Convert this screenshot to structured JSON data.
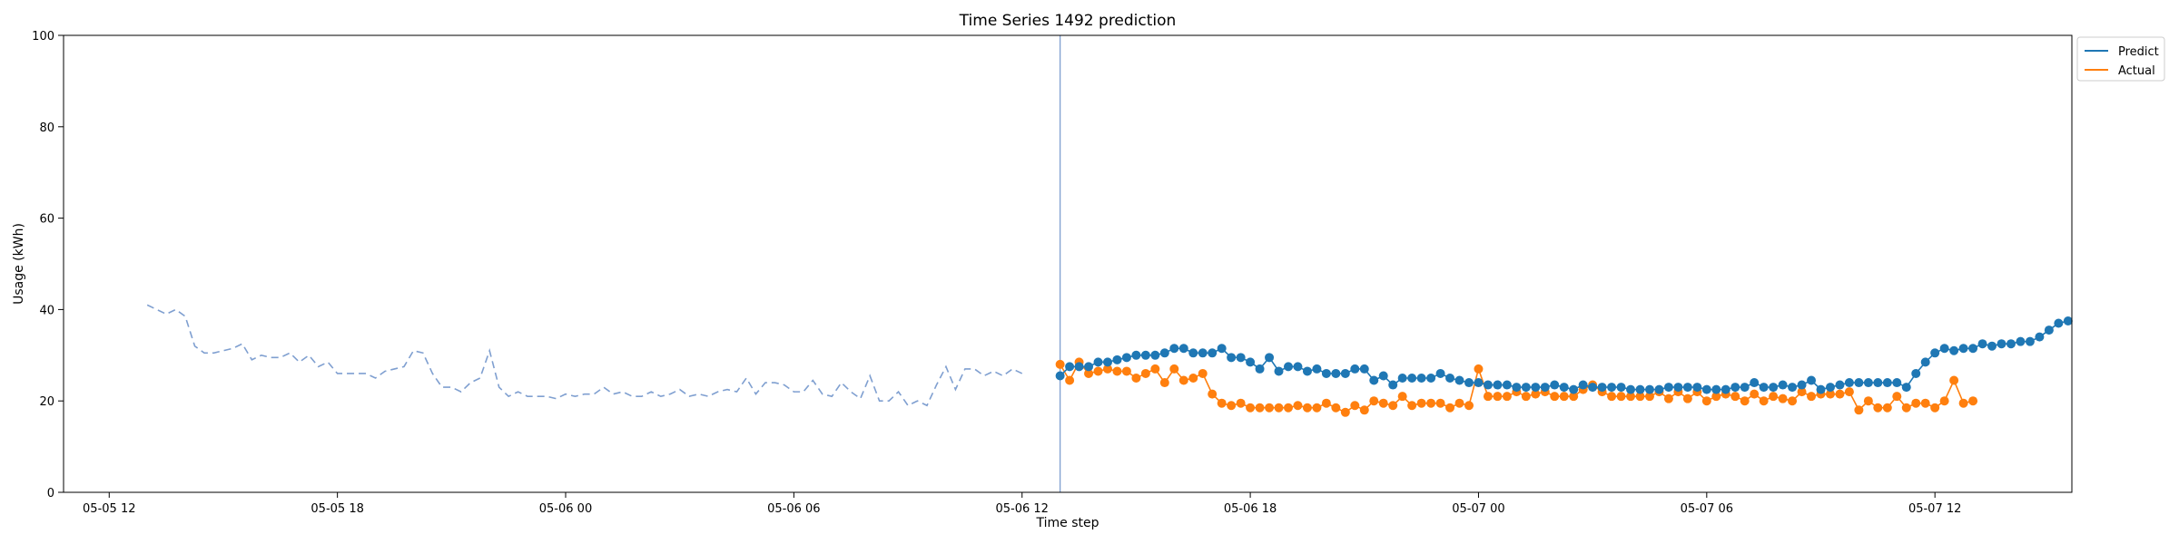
{
  "chart_data": {
    "type": "line",
    "title": "Time Series 1492 prediction",
    "xlabel": "Time step",
    "ylabel": "Usage (kWh)",
    "ylim": [
      0,
      100
    ],
    "yticks": [
      0,
      20,
      40,
      60,
      80,
      100
    ],
    "xlim": [
      "2023-05-05 10:48",
      "2023-05-07 15:36"
    ],
    "xticks": [
      {
        "t": "2023-05-05 12:00",
        "label": "05-05 12"
      },
      {
        "t": "2023-05-05 18:00",
        "label": "05-05 18"
      },
      {
        "t": "2023-05-06 00:00",
        "label": "05-06 00"
      },
      {
        "t": "2023-05-06 06:00",
        "label": "05-06 06"
      },
      {
        "t": "2023-05-06 12:00",
        "label": "05-06 12"
      },
      {
        "t": "2023-05-06 18:00",
        "label": "05-06 18"
      },
      {
        "t": "2023-05-07 00:00",
        "label": "05-07 00"
      },
      {
        "t": "2023-05-07 06:00",
        "label": "05-07 06"
      },
      {
        "t": "2023-05-07 12:00",
        "label": "05-07 12"
      }
    ],
    "forecast_start": "2023-05-06 13:00",
    "grid": false,
    "legend_position": "top-right, outside plot",
    "history": {
      "start": "2023-05-05 13:00",
      "step_minutes": 15,
      "color": "#7f9fd0",
      "style": "dashed",
      "values": [
        41,
        40,
        39,
        40,
        38.5,
        32,
        30.5,
        30.5,
        31,
        31.5,
        32.5,
        29,
        30,
        29.5,
        29.5,
        30.5,
        28.5,
        30,
        27.5,
        28.5,
        26,
        26,
        26,
        26,
        25,
        26.5,
        27,
        27.5,
        31,
        30.5,
        26,
        23,
        23,
        22,
        24,
        25,
        31,
        23,
        21,
        22,
        21,
        21,
        21,
        20.5,
        21.5,
        21,
        21.5,
        21.5,
        23,
        21.5,
        22,
        21,
        21,
        22,
        21,
        21.5,
        22.5,
        21,
        21.5,
        21,
        22,
        22.5,
        22,
        25,
        21.5,
        24,
        24,
        23.5,
        22,
        22,
        24.5,
        21.5,
        21,
        24,
        22,
        20.5,
        25.5,
        20,
        20,
        22,
        19,
        20,
        19,
        23.5,
        27.5,
        22.5,
        27,
        27,
        25.5,
        26.5,
        25.5,
        27,
        26
      ]
    },
    "series": [
      {
        "name": "Predict",
        "color": "#1f77b4",
        "start": "2023-05-06 13:00",
        "step_minutes": 15,
        "values": [
          25.5,
          27.5,
          27.5,
          27.5,
          28.5,
          28.5,
          29,
          29.5,
          30,
          30,
          30,
          30.5,
          31.5,
          31.5,
          30.5,
          30.5,
          30.5,
          31.5,
          29.5,
          29.5,
          28.5,
          27,
          29.5,
          26.5,
          27.5,
          27.5,
          26.5,
          27,
          26,
          26,
          26,
          27,
          27,
          24.5,
          25.5,
          23.5,
          25,
          25,
          25,
          25,
          26,
          25,
          24.5,
          24,
          24,
          23.5,
          23.5,
          23.5,
          23,
          23,
          23,
          23,
          23.5,
          23,
          22.5,
          23.5,
          23,
          23,
          23,
          23,
          22.5,
          22.5,
          22.5,
          22.5,
          23,
          23,
          23,
          23,
          22.5,
          22.5,
          22.5,
          23,
          23,
          24,
          23,
          23,
          23.5,
          23,
          23.5,
          24.5,
          22.5,
          23,
          23.5,
          24,
          24,
          24,
          24,
          24,
          24,
          23,
          26,
          28.5,
          30.5,
          31.5,
          31,
          31.5,
          31.5,
          32.5,
          32,
          32.5,
          32.5,
          33,
          33,
          34,
          35.5,
          37,
          37.5
        ]
      },
      {
        "name": "Actual",
        "color": "#ff7f0e",
        "start": "2023-05-06 13:00",
        "step_minutes": 15,
        "values": [
          28,
          24.5,
          28.5,
          26,
          26.5,
          27,
          26.5,
          26.5,
          25,
          26,
          27,
          24,
          27,
          24.5,
          25,
          26,
          21.5,
          19.5,
          19,
          19.5,
          18.5,
          18.5,
          18.5,
          18.5,
          18.5,
          19,
          18.5,
          18.5,
          19.5,
          18.5,
          17.5,
          19,
          18,
          20,
          19.5,
          19,
          21,
          19,
          19.5,
          19.5,
          19.5,
          18.5,
          19.5,
          19,
          27,
          21,
          21,
          21,
          22,
          21,
          21.5,
          22,
          21,
          21,
          21,
          22.5,
          23.5,
          22,
          21,
          21,
          21,
          21,
          21,
          22,
          20.5,
          22,
          20.5,
          22,
          20,
          21,
          21.5,
          21,
          20,
          21.5,
          20,
          21,
          20.5,
          20,
          22,
          21,
          21.5,
          21.5,
          21.5,
          22,
          18,
          20,
          18.5,
          18.5,
          21,
          18.5,
          19.5,
          19.5,
          18.5,
          20,
          24.5,
          19.5,
          20
        ]
      }
    ]
  }
}
